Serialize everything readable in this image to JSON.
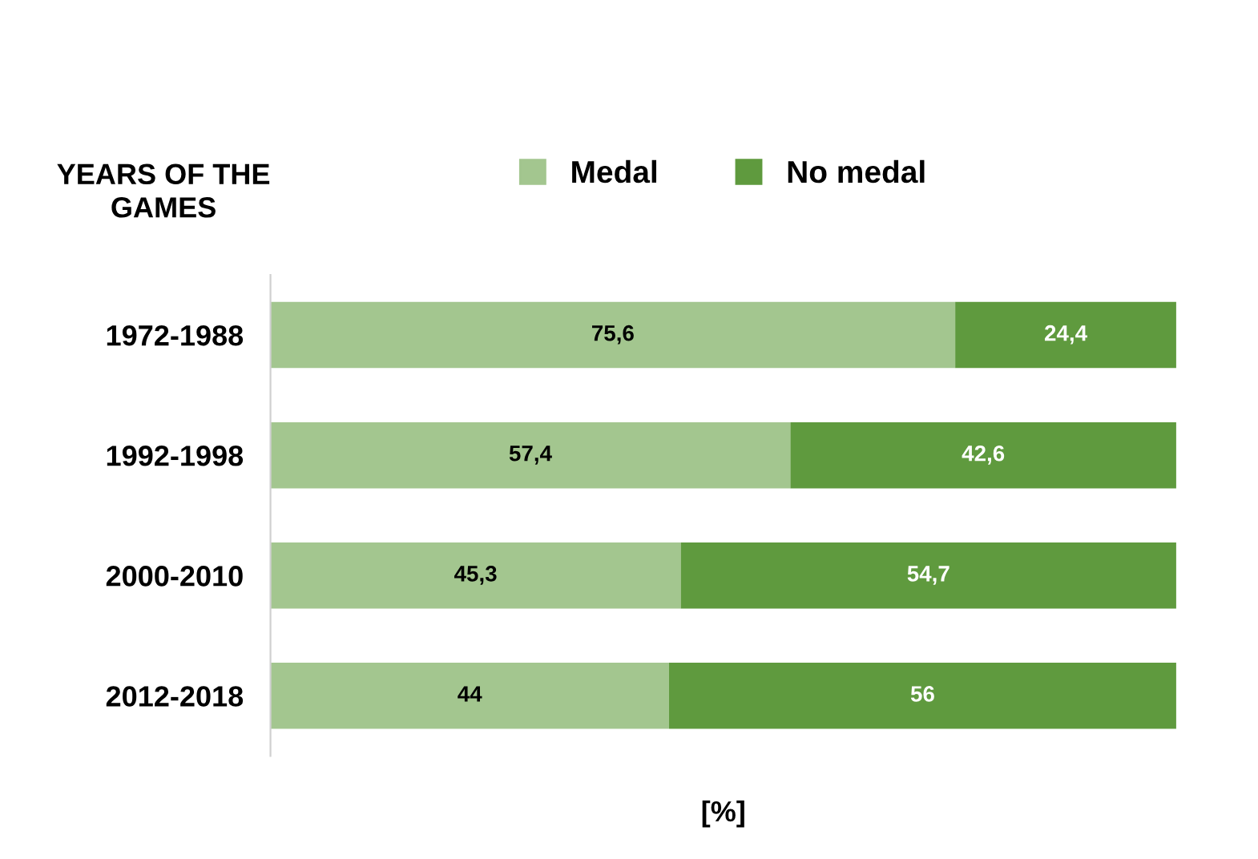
{
  "chart_data": {
    "type": "bar",
    "orientation": "horizontal",
    "stacked": true,
    "ylabel": "YEARS OF THE GAMES",
    "xlabel": "[%]",
    "categories": [
      "1972-1988",
      "1992-1998",
      "2000-2010",
      "2012-2018"
    ],
    "series": [
      {
        "name": "Medal",
        "color": "#a3c68f",
        "values": [
          75.6,
          57.4,
          45.3,
          44
        ],
        "value_labels": [
          "75,6",
          "57,4",
          "45,3",
          "44"
        ]
      },
      {
        "name": "No medal",
        "color": "#5f9a3e",
        "values": [
          24.4,
          42.6,
          54.7,
          56
        ],
        "value_labels": [
          "24,4",
          "42,6",
          "54,7",
          "56"
        ]
      }
    ],
    "xlim": [
      0,
      100
    ],
    "tick_labels": "y",
    "legend": "top",
    "grid": false
  }
}
